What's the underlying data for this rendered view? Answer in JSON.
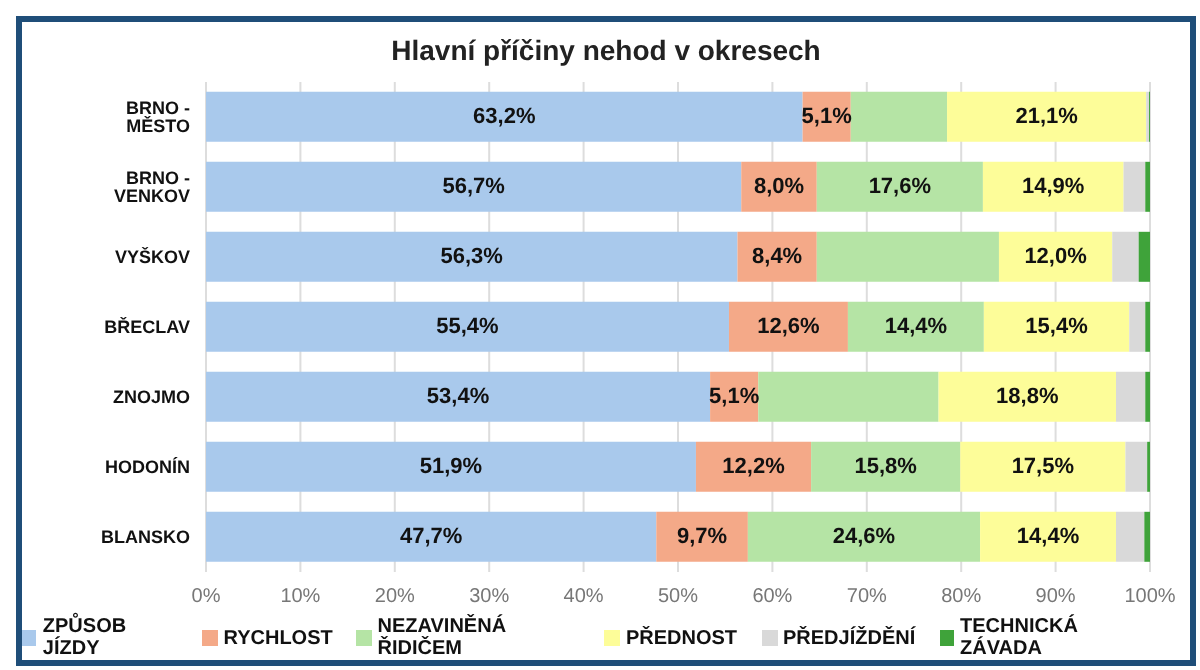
{
  "chart_data": {
    "type": "bar",
    "orientation": "horizontal",
    "stacked": true,
    "title": "Hlavní příčiny nehod v okresech",
    "categories": [
      "BRNO - MĚSTO",
      "BRNO - VENKOV",
      "VYŠKOV",
      "BŘECLAV",
      "ZNOJMO",
      "HODONÍN",
      "BLANSKO"
    ],
    "series": [
      {
        "name": "ZPŮSOB JÍZDY",
        "color": "#a9c9ec",
        "values": [
          63.2,
          56.7,
          56.3,
          55.4,
          53.4,
          51.9,
          47.7
        ],
        "value_labels": [
          "63,2%",
          "56,7%",
          "56,3%",
          "55,4%",
          "53,4%",
          "51,9%",
          "47,7%"
        ]
      },
      {
        "name": "RYCHLOST",
        "color": "#f4a988",
        "values": [
          5.1,
          8.0,
          8.4,
          12.6,
          5.1,
          12.2,
          9.7
        ],
        "value_labels": [
          "5,1%",
          "8,0%",
          "8,4%",
          "12,6%",
          "5,1%",
          "12,2%",
          "9,7%"
        ]
      },
      {
        "name": "NEZAVINĚNÁ ŘIDIČEM",
        "color": "#b5e4a5",
        "values": [
          10.2,
          17.6,
          19.3,
          14.4,
          19.1,
          15.8,
          24.6
        ],
        "value_labels": [
          null,
          "17,6%",
          null,
          "14,4%",
          null,
          "15,8%",
          "24,6%"
        ]
      },
      {
        "name": "PŘEDNOST",
        "color": "#fdfd99",
        "values": [
          21.1,
          14.9,
          12.0,
          15.4,
          18.8,
          17.5,
          14.4
        ],
        "value_labels": [
          "21,1%",
          "14,9%",
          "12,0%",
          "15,4%",
          "18,8%",
          "17,5%",
          "14,4%"
        ]
      },
      {
        "name": "PŘEDJÍŽDĚNÍ",
        "color": "#d9d9d9",
        "values": [
          0.3,
          2.3,
          2.8,
          1.7,
          3.1,
          2.3,
          3.0
        ],
        "value_labels": [
          null,
          null,
          null,
          null,
          null,
          null,
          null
        ]
      },
      {
        "name": "TECHNICKÁ ZÁVADA",
        "color": "#3fa33a",
        "values": [
          0.2,
          0.5,
          1.2,
          0.5,
          0.5,
          0.3,
          0.6
        ],
        "value_labels": [
          null,
          null,
          null,
          null,
          null,
          null,
          null
        ]
      }
    ],
    "xlim": [
      0,
      100
    ],
    "xticks": [
      {
        "value": 0,
        "label": "0%"
      },
      {
        "value": 10,
        "label": "10%"
      },
      {
        "value": 20,
        "label": "20%"
      },
      {
        "value": 30,
        "label": "30%"
      },
      {
        "value": 40,
        "label": "40%"
      },
      {
        "value": 50,
        "label": "50%"
      },
      {
        "value": 60,
        "label": "60%"
      },
      {
        "value": 70,
        "label": "70%"
      },
      {
        "value": 80,
        "label": "80%"
      },
      {
        "value": 90,
        "label": "90%"
      },
      {
        "value": 100,
        "label": "100%"
      }
    ],
    "grid": "x",
    "legend": "bottom"
  }
}
